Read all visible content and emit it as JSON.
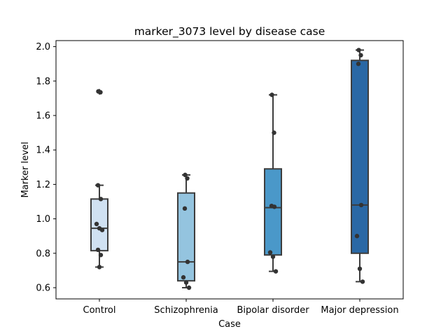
{
  "chart_data": {
    "type": "box",
    "title": "marker_3073 level by disease case",
    "xlabel": "Case",
    "ylabel": "Marker level",
    "ylim": [
      0.535,
      2.035
    ],
    "yticks": [
      "0.6",
      "0.8",
      "1.0",
      "1.2",
      "1.4",
      "1.6",
      "1.8",
      "2.0"
    ],
    "ytick_values": [
      0.6,
      0.8,
      1.0,
      1.2,
      1.4,
      1.6,
      1.8,
      2.0
    ],
    "categories": [
      "Control",
      "Schizophrenia",
      "Bipolar disorder",
      "Major depression"
    ],
    "colors": [
      "#d0e1f2",
      "#94c4df",
      "#4a98c9",
      "#2a68a5"
    ],
    "boxes": [
      {
        "category": "Control",
        "whisker_low": 0.72,
        "q1": 0.815,
        "median": 0.945,
        "q3": 1.115,
        "whisker_high": 1.195,
        "outliers": [
          1.735,
          1.74
        ]
      },
      {
        "category": "Schizophrenia",
        "whisker_low": 0.6,
        "q1": 0.64,
        "median": 0.75,
        "q3": 1.15,
        "whisker_high": 1.255,
        "outliers": []
      },
      {
        "category": "Bipolar disorder",
        "whisker_low": 0.695,
        "q1": 0.79,
        "median": 1.065,
        "q3": 1.29,
        "whisker_high": 1.72,
        "outliers": []
      },
      {
        "category": "Major depression",
        "whisker_low": 0.635,
        "q1": 0.8,
        "median": 1.08,
        "q3": 1.92,
        "whisker_high": 1.98,
        "outliers": []
      }
    ],
    "points": [
      [
        1.74,
        1.735,
        1.195,
        1.115,
        0.97,
        0.945,
        0.935,
        0.82,
        0.79,
        0.72
      ],
      [
        1.255,
        1.235,
        1.06,
        0.75,
        0.66,
        0.63,
        0.6
      ],
      [
        1.72,
        1.5,
        1.075,
        1.07,
        0.805,
        0.78,
        0.695
      ],
      [
        1.98,
        1.95,
        1.9,
        1.08,
        0.9,
        0.71,
        0.635
      ]
    ],
    "grid": false
  }
}
